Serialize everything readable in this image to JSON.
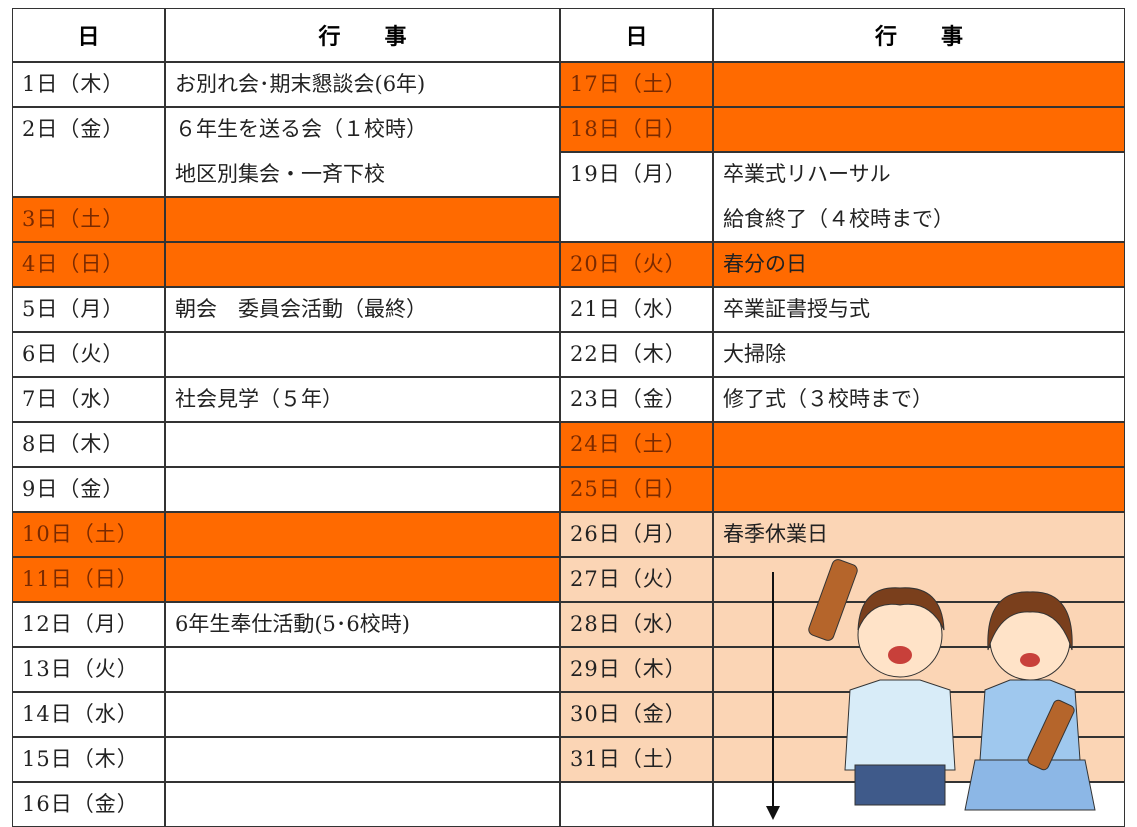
{
  "header": [
    "日",
    "行　　事",
    "日",
    "行　　事"
  ],
  "left": [
    {
      "day": "1日（木）",
      "lines": [
        "お別れ会･期末懇談会(6年)"
      ]
    },
    {
      "day": "2日（金）",
      "lines": [
        "６年生を送る会（１校時）",
        "地区別集会・一斉下校"
      ]
    },
    {
      "day": "3日（土）",
      "lines": [],
      "fill": "#ff6a00"
    },
    {
      "day": "4日（日）",
      "lines": [],
      "fill": "#ff6a00"
    },
    {
      "day": "5日（月）",
      "lines": [
        "朝会　委員会活動（最終）"
      ]
    },
    {
      "day": "6日（火）",
      "lines": []
    },
    {
      "day": "7日（水）",
      "lines": [
        "社会見学（５年）"
      ]
    },
    {
      "day": "8日（木）",
      "lines": []
    },
    {
      "day": "9日（金）",
      "lines": []
    },
    {
      "day": "10日（土）",
      "lines": [],
      "fill": "#ff6a00"
    },
    {
      "day": "11日（日）",
      "lines": [],
      "fill": "#ff6a00"
    },
    {
      "day": "12日（月）",
      "lines": [
        "6年生奉仕活動(5･6校時)"
      ]
    },
    {
      "day": "13日（火）",
      "lines": []
    },
    {
      "day": "14日（水）",
      "lines": []
    },
    {
      "day": "15日（木）",
      "lines": []
    },
    {
      "day": "16日（金）",
      "lines": []
    }
  ],
  "right": [
    {
      "day": "17日（土）",
      "lines": [],
      "fill": "#ff6a00"
    },
    {
      "day": "18日（日）",
      "lines": [],
      "fill": "#ff6a00"
    },
    {
      "day": "19日（月）",
      "lines": [
        "卒業式リハーサル",
        "給食終了（４校時まで）"
      ]
    },
    {
      "day": "20日（火）",
      "lines": [
        "春分の日"
      ],
      "fill": "#ff6a00"
    },
    {
      "day": "21日（水）",
      "lines": [
        "卒業証書授与式"
      ]
    },
    {
      "day": "22日（木）",
      "lines": [
        "大掃除"
      ]
    },
    {
      "day": "23日（金）",
      "lines": [
        "修了式（３校時まで）"
      ]
    },
    {
      "day": "24日（土）",
      "lines": [],
      "fill": "#ff6a00"
    },
    {
      "day": "25日（日）",
      "lines": [],
      "fill": "#ff6a00"
    },
    {
      "day": "26日（月）",
      "lines": [
        "春季休業日"
      ],
      "fill": "#fbd5b5"
    },
    {
      "day": "27日（火）",
      "lines": [],
      "fill": "#fbd5b5"
    },
    {
      "day": "28日（水）",
      "lines": [],
      "fill": "#fbd5b5"
    },
    {
      "day": "29日（木）",
      "lines": [],
      "fill": "#fbd5b5"
    },
    {
      "day": "30日（金）",
      "lines": [],
      "fill": "#fbd5b5"
    },
    {
      "day": "31日（土）",
      "lines": [],
      "fill": "#fbd5b5"
    },
    {
      "day": null,
      "lines": []
    }
  ]
}
